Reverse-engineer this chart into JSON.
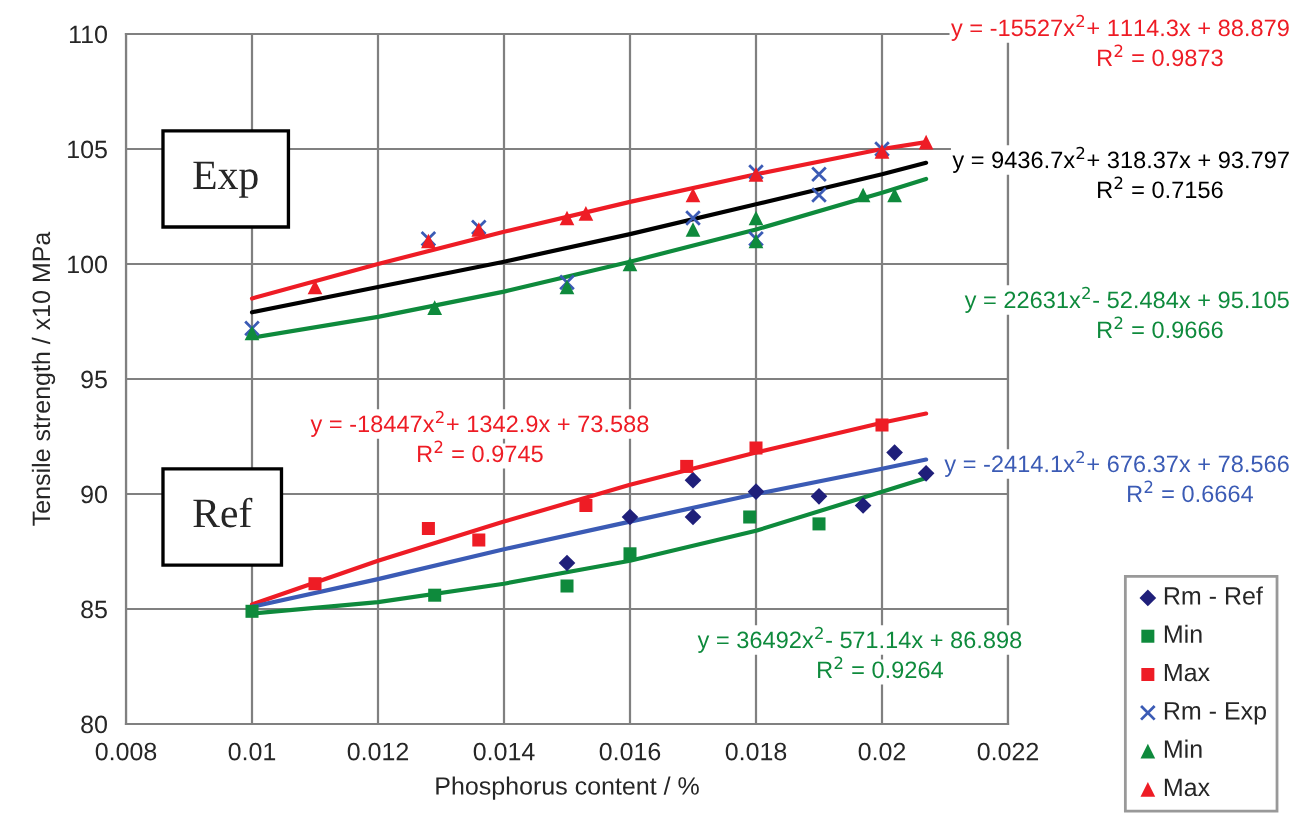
{
  "chart_data": {
    "type": "scatter",
    "xlabel": "Phosphorus content / %",
    "ylabel": "Tensile strength / x10 MPa",
    "xlim": [
      0.008,
      0.022
    ],
    "xticks": [
      0.008,
      0.01,
      0.012,
      0.014,
      0.016,
      0.018,
      0.02,
      0.022
    ],
    "ylim": [
      80,
      110
    ],
    "yticks": [
      80,
      85,
      90,
      95,
      100,
      105,
      110
    ],
    "grid": true,
    "legend": "bottom right",
    "series": [
      {
        "name": "Rm - Ref",
        "color": "#1f1f7a",
        "marker": "diamond",
        "x": [
          0.015,
          0.016,
          0.017,
          0.017,
          0.018,
          0.019,
          0.0197,
          0.0202,
          0.0207
        ],
        "values": [
          87.0,
          89.0,
          90.6,
          89.0,
          90.1,
          89.9,
          89.5,
          91.8,
          90.9
        ]
      },
      {
        "name": "Min",
        "color": "#0e8a3c",
        "marker": "square",
        "x": [
          0.01,
          0.0129,
          0.015,
          0.016,
          0.0179,
          0.019
        ],
        "values": [
          84.9,
          85.6,
          86.0,
          87.4,
          89.0,
          88.7
        ]
      },
      {
        "name": "Max",
        "color": "#ee1c25",
        "marker": "square",
        "x": [
          0.011,
          0.0128,
          0.0136,
          0.0153,
          0.0169,
          0.018,
          0.02
        ],
        "values": [
          86.1,
          88.5,
          88.0,
          89.5,
          91.2,
          92.0,
          93.0
        ]
      },
      {
        "name": "Rm - Exp",
        "color": "#3b5bb5",
        "marker": "cross",
        "x": [
          0.01,
          0.0128,
          0.0136,
          0.015,
          0.017,
          0.018,
          0.018,
          0.019,
          0.019,
          0.02
        ],
        "values": [
          97.2,
          101.1,
          101.6,
          99.2,
          102.0,
          101.1,
          104.0,
          103.9,
          103.0,
          105.0
        ]
      },
      {
        "name": "Min",
        "color": "#0e8a3c",
        "marker": "triangle",
        "x": [
          0.01,
          0.0129,
          0.015,
          0.016,
          0.017,
          0.018,
          0.018,
          0.0197,
          0.0202
        ],
        "values": [
          97.0,
          98.1,
          99.0,
          100.0,
          101.5,
          102.0,
          101.0,
          103.0,
          103.0
        ]
      },
      {
        "name": "Max",
        "color": "#ee1c25",
        "marker": "triangle",
        "x": [
          0.011,
          0.0128,
          0.0136,
          0.015,
          0.0153,
          0.017,
          0.018,
          0.02,
          0.0207
        ],
        "values": [
          99.0,
          101.0,
          101.5,
          102.0,
          102.2,
          103.0,
          103.9,
          104.9,
          105.3
        ]
      },
      {
        "type": "line",
        "color": "#ee1c25",
        "x": [
          0.01,
          0.012,
          0.014,
          0.016,
          0.018,
          0.02,
          0.0207
        ],
        "values": [
          98.5,
          100.0,
          101.4,
          102.7,
          103.9,
          105.0,
          105.3
        ]
      },
      {
        "type": "line",
        "color": "#000000",
        "x": [
          0.01,
          0.012,
          0.014,
          0.016,
          0.018,
          0.02,
          0.0207
        ],
        "values": [
          97.9,
          99.0,
          100.1,
          101.3,
          102.6,
          103.9,
          104.4
        ]
      },
      {
        "type": "line",
        "color": "#0e8a3c",
        "x": [
          0.01,
          0.012,
          0.014,
          0.016,
          0.018,
          0.02,
          0.0207
        ],
        "values": [
          96.8,
          97.7,
          98.8,
          100.1,
          101.5,
          103.1,
          103.7
        ]
      },
      {
        "type": "line",
        "color": "#ee1c25",
        "x": [
          0.01,
          0.012,
          0.014,
          0.016,
          0.018,
          0.02,
          0.0207
        ],
        "values": [
          85.2,
          87.1,
          88.8,
          90.4,
          91.8,
          93.1,
          93.5
        ]
      },
      {
        "type": "line",
        "color": "#3b5bb5",
        "x": [
          0.01,
          0.012,
          0.014,
          0.016,
          0.018,
          0.02,
          0.0207
        ],
        "values": [
          85.1,
          86.3,
          87.6,
          88.8,
          90.0,
          91.1,
          91.5
        ]
      },
      {
        "type": "line",
        "color": "#0e8a3c",
        "x": [
          0.01,
          0.012,
          0.014,
          0.016,
          0.018,
          0.02,
          0.0207
        ],
        "values": [
          84.8,
          85.3,
          86.1,
          87.1,
          88.4,
          90.1,
          90.7
        ]
      }
    ],
    "annotations": [
      "Exp",
      "Ref",
      "y = -15527x$^{2}$+ 1114.3x + 88.879",
      "R$^{2}$ = 0.9873",
      "y = 9436.7x$^{2}$+ 318.37x + 93.797",
      "R$^{2}$ = 0.7156",
      "y = 22631x$^{2}$- 52.484x + 95.105",
      "R$^{2}$ = 0.9666",
      "y = -18447x$^{2}$+ 1342.9x + 73.588",
      "R$^{2}$ = 0.9745",
      "y = -2414.1x$^{2}$+ 676.37x + 78.566",
      "R$^{2}$ = 0.6664",
      "y = 36492x$^{2}$- 571.14x + 86.898",
      "R$^{2}$ = 0.9264"
    ]
  }
}
